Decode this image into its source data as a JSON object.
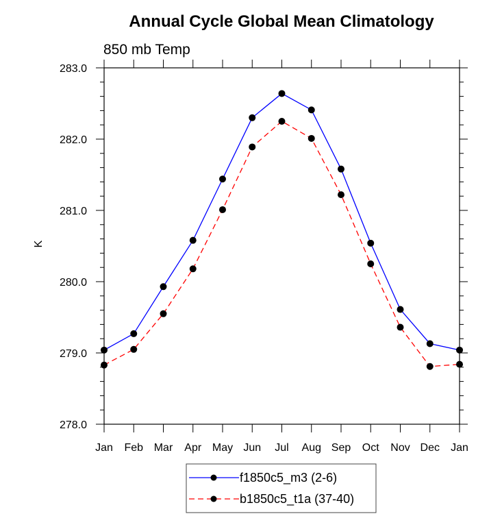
{
  "chart_data": {
    "type": "line",
    "title": "Annual Cycle Global Mean Climatology",
    "subtitle": "850 mb Temp",
    "xlabel": "",
    "ylabel": "K",
    "categories": [
      "Jan",
      "Feb",
      "Mar",
      "Apr",
      "May",
      "Jun",
      "Jul",
      "Aug",
      "Sep",
      "Oct",
      "Nov",
      "Dec",
      "Jan"
    ],
    "ylim": [
      278.0,
      283.0
    ],
    "yticks": [
      "278.0",
      "279.0",
      "280.0",
      "281.0",
      "282.0",
      "283.0"
    ],
    "y_minor_step": 0.2,
    "grid": false,
    "legend_position": "bottom-center",
    "series": [
      {
        "name": "f1850c5_m3 (2-6)",
        "color": "#0000ff",
        "line_style": "solid",
        "marker": "filled-circle",
        "marker_color": "#000000",
        "values": [
          279.04,
          279.27,
          279.93,
          280.58,
          281.44,
          282.3,
          282.64,
          282.41,
          281.58,
          280.54,
          279.61,
          279.13,
          279.04
        ]
      },
      {
        "name": "b1850c5_t1a (37-40)",
        "color": "#ff0000",
        "line_style": "dashed",
        "marker": "filled-circle",
        "marker_color": "#000000",
        "values": [
          278.83,
          279.05,
          279.55,
          280.18,
          281.01,
          281.89,
          282.25,
          282.01,
          281.22,
          280.25,
          279.36,
          278.81,
          278.84
        ]
      }
    ]
  }
}
